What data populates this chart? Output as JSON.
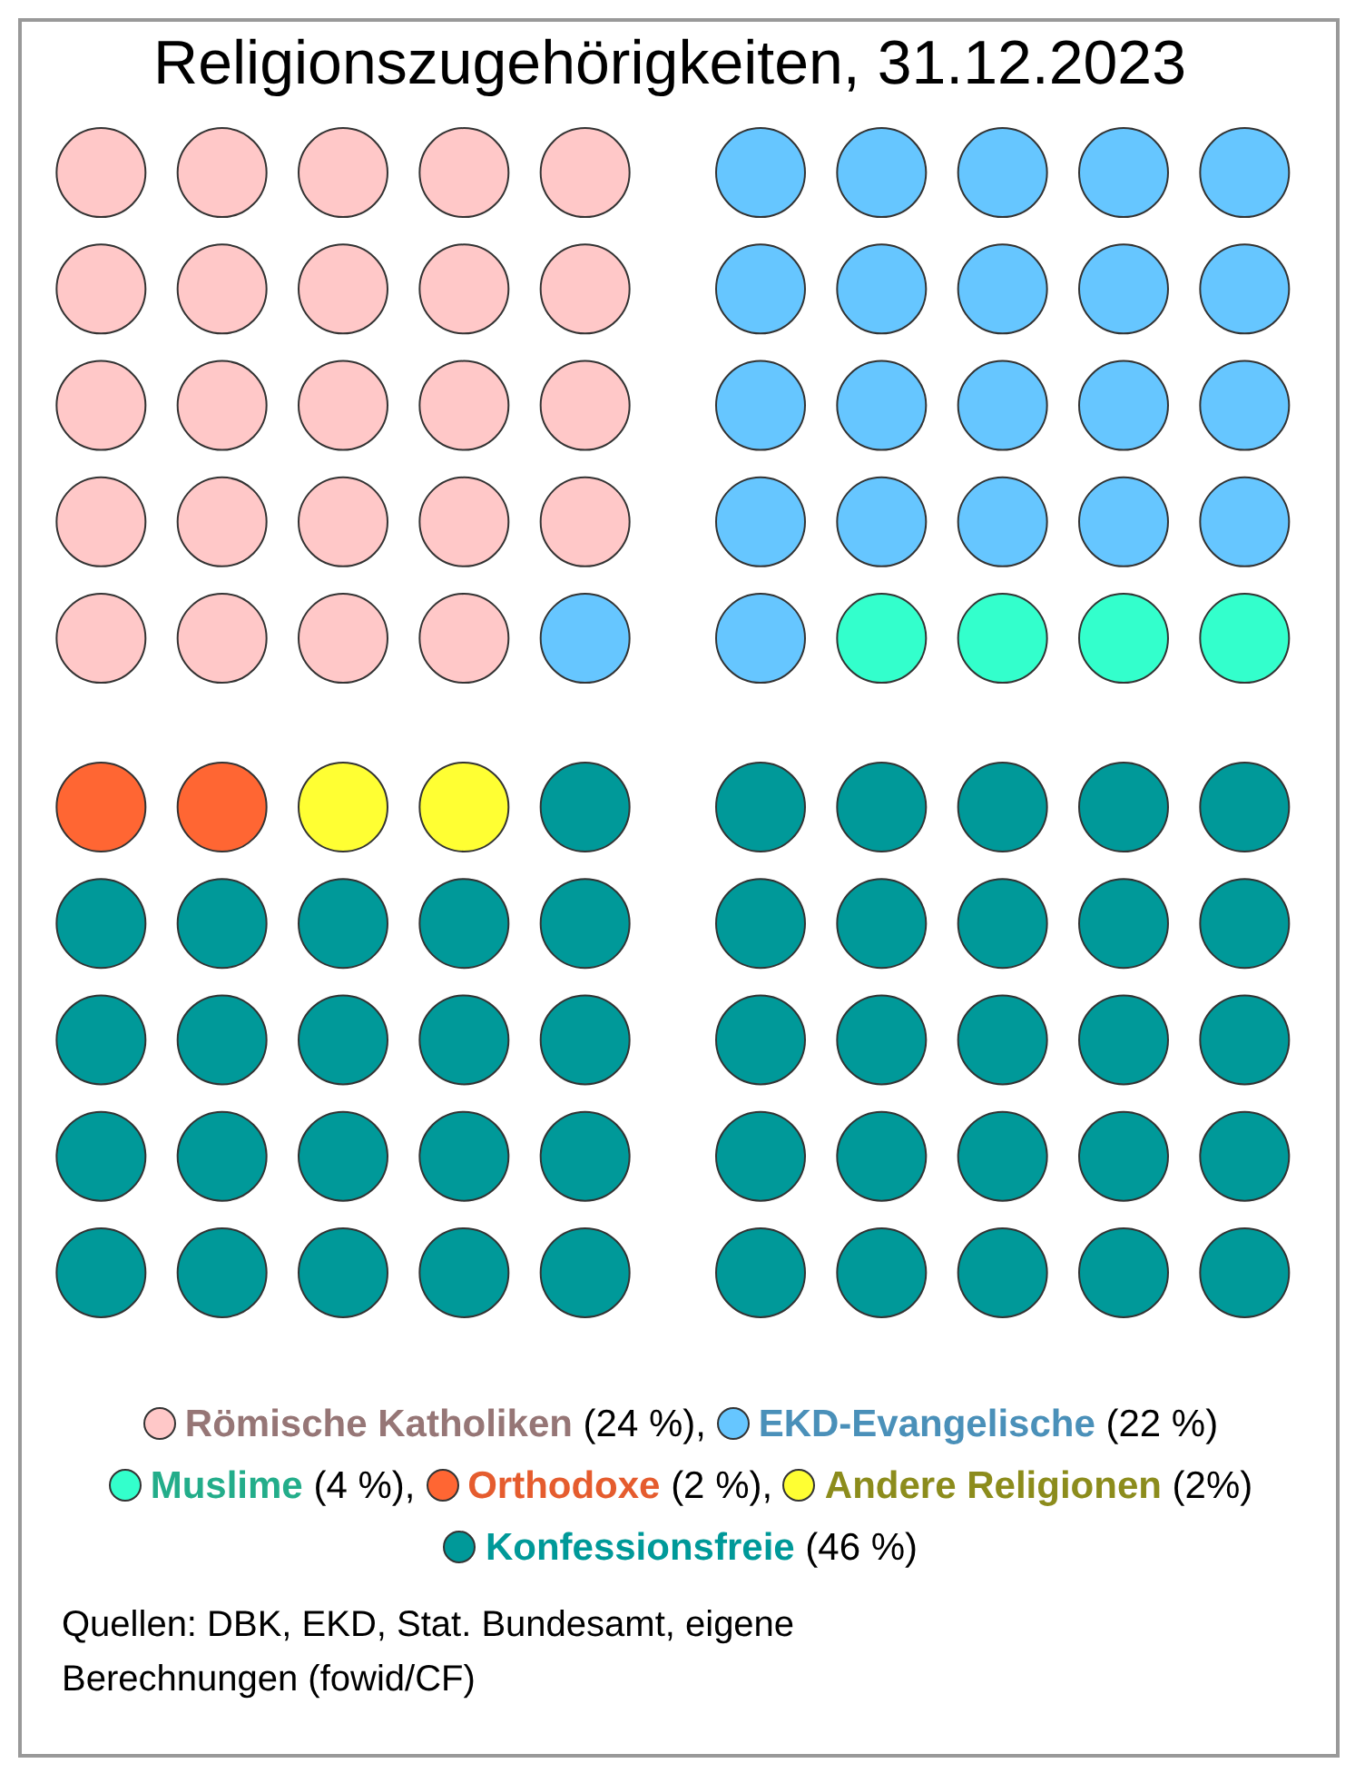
{
  "chart_data": {
    "type": "other",
    "title": "Religionszugehörigkeiten, 31.12.2023",
    "categories": [
      "Römische Katholiken",
      "EKD-Evangelische",
      "Muslime",
      "Orthodoxe",
      "Andere Religionen",
      "Konfessionsfreie"
    ],
    "values": [
      24,
      22,
      4,
      2,
      2,
      46
    ],
    "colors": [
      "#ffc8c8",
      "#66c6ff",
      "#33ffcc",
      "#ff6633",
      "#ffff33",
      "#009999"
    ],
    "value_labels": [
      "(24 %),",
      "(22 %)",
      "(4 %),",
      "(2 %),",
      "(2%)",
      "(46 %)"
    ],
    "annotations": [
      "Quellen: DBK, EKD, Stat. Bundesamt, eigene Berechnungen (fowid/CF)"
    ]
  }
}
